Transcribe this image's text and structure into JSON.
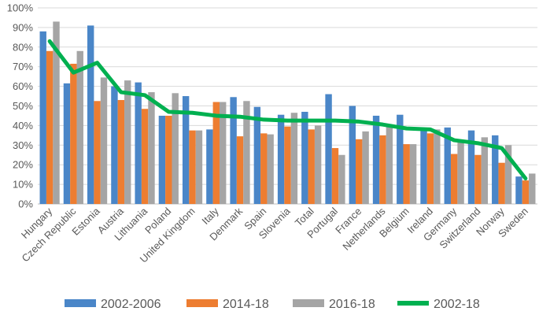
{
  "chart_data": {
    "type": "bar",
    "title": "",
    "xlabel": "",
    "ylabel": "",
    "ylim": [
      0,
      100
    ],
    "y_ticks": [
      "0%",
      "10%",
      "20%",
      "30%",
      "40%",
      "50%",
      "60%",
      "70%",
      "80%",
      "90%",
      "100%"
    ],
    "grid": true,
    "legend_position": "bottom",
    "categories": [
      "Hungary",
      "Czech Republic",
      "Estonia",
      "Austria",
      "Lithuania",
      "Poland",
      "United Kingdom",
      "Italy",
      "Denmark",
      "Spain",
      "Slovenia",
      "Total",
      "Portugal",
      "France",
      "Netherlands",
      "Belgium",
      "Ireland",
      "Germany",
      "Switzerland",
      "Norway",
      "Sweden"
    ],
    "series": [
      {
        "name": "2002-2006",
        "kind": "bar",
        "color": "#4a86c8",
        "values": [
          88,
          61.5,
          91,
          60,
          62,
          45,
          55,
          38,
          54.5,
          49.5,
          45.5,
          47,
          56,
          50,
          45,
          45.5,
          38,
          39,
          37.5,
          35,
          14
        ]
      },
      {
        "name": "2014-18",
        "kind": "bar",
        "color": "#ed7d31",
        "values": [
          78,
          71.5,
          52.5,
          53,
          48.5,
          45,
          37.5,
          52,
          34.5,
          36,
          39.5,
          38,
          28.5,
          33,
          35,
          30.5,
          36,
          25.5,
          25,
          21,
          12
        ]
      },
      {
        "name": "2016-18",
        "kind": "bar",
        "color": "#a5a5a5",
        "values": [
          93,
          78,
          64.5,
          63,
          57,
          56.5,
          37.5,
          52,
          52.5,
          35.5,
          46.5,
          40,
          25,
          37,
          40,
          30.5,
          38,
          32,
          34,
          30,
          15.5
        ]
      },
      {
        "name": "2002-18",
        "kind": "line",
        "color": "#00b050",
        "values": [
          83,
          67,
          72,
          57,
          55.5,
          47,
          46.5,
          45,
          44.5,
          43,
          42.5,
          42.5,
          42.5,
          42,
          40.5,
          38.5,
          38,
          32.5,
          31,
          28.5,
          13
        ]
      }
    ]
  }
}
